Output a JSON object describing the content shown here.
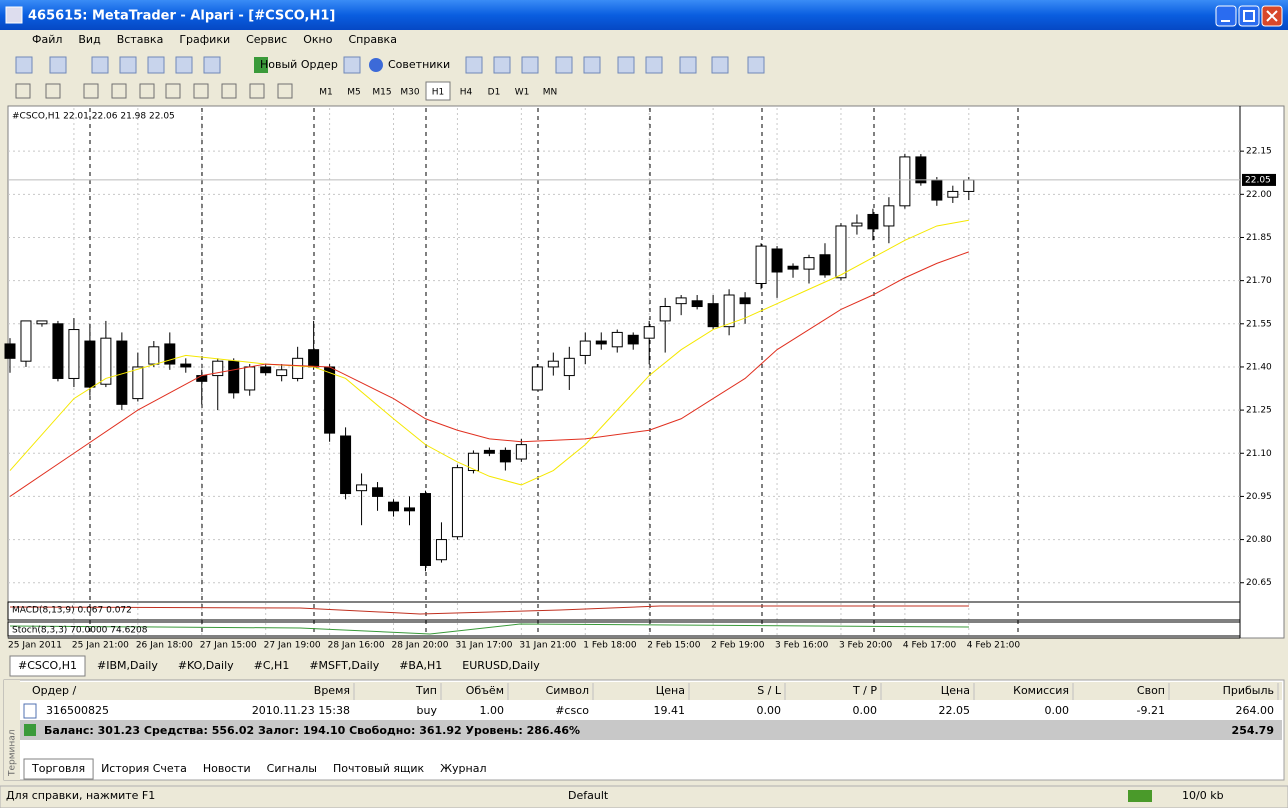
{
  "window": {
    "title": "465615: MetaTrader - Alpari - [#CSCO,H1]"
  },
  "menu": [
    "Файл",
    "Вид",
    "Вставка",
    "Графики",
    "Сервис",
    "Окно",
    "Справка"
  ],
  "toolbar": {
    "new_order": "Новый Ордер",
    "experts": "Советники",
    "timeframes": [
      "M1",
      "M5",
      "M15",
      "M30",
      "H1",
      "H4",
      "D1",
      "W1",
      "MN"
    ]
  },
  "chart_data": {
    "type": "candlestick",
    "header": "#CSCO,H1  22.01 22.06 21.98 22.05",
    "open": [
      21.48,
      21.42,
      21.55,
      21.55,
      21.36,
      21.49,
      21.34,
      21.49,
      21.29,
      21.41,
      21.48,
      21.41,
      21.37,
      21.37,
      21.42,
      21.32,
      21.4,
      21.37,
      21.36,
      21.46,
      21.4,
      21.16,
      20.97,
      20.98,
      20.93,
      20.91,
      20.96,
      20.73,
      20.81,
      21.04,
      21.11,
      21.11,
      21.08,
      21.32,
      21.4,
      21.37,
      21.44,
      21.49,
      21.47,
      21.51,
      21.5,
      21.56,
      21.62,
      21.63,
      21.62,
      21.54,
      21.64,
      21.69,
      21.81,
      21.75,
      21.74,
      21.79,
      21.71,
      21.89,
      21.93,
      21.89,
      21.96,
      22.13,
      22.05,
      21.99,
      22.01
    ],
    "high": [
      21.5,
      21.56,
      21.56,
      21.56,
      21.57,
      21.55,
      21.56,
      21.52,
      21.45,
      21.49,
      21.52,
      21.43,
      21.39,
      21.43,
      21.43,
      21.41,
      21.41,
      21.41,
      21.47,
      21.56,
      21.41,
      21.19,
      21.03,
      21.0,
      20.94,
      20.95,
      20.97,
      20.86,
      21.06,
      21.11,
      21.12,
      21.12,
      21.15,
      21.41,
      21.45,
      21.47,
      21.52,
      21.52,
      21.53,
      21.52,
      21.56,
      21.64,
      21.65,
      21.65,
      21.65,
      21.67,
      21.66,
      21.83,
      21.82,
      21.76,
      21.79,
      21.83,
      21.9,
      21.93,
      21.95,
      21.99,
      22.14,
      22.14,
      22.06,
      22.03,
      22.06
    ],
    "low": [
      21.38,
      21.4,
      21.54,
      21.35,
      21.33,
      21.3,
      21.33,
      21.25,
      21.28,
      21.4,
      21.39,
      21.38,
      21.27,
      21.25,
      21.29,
      21.3,
      21.37,
      21.35,
      21.35,
      21.39,
      21.14,
      20.94,
      20.85,
      20.9,
      20.88,
      20.85,
      20.69,
      20.72,
      20.8,
      21.03,
      21.09,
      21.04,
      21.07,
      21.32,
      21.37,
      21.32,
      21.41,
      21.46,
      21.45,
      21.46,
      21.41,
      21.45,
      21.58,
      21.6,
      21.53,
      21.51,
      21.55,
      21.67,
      21.64,
      21.71,
      21.69,
      21.71,
      21.7,
      21.86,
      21.84,
      21.83,
      21.95,
      22.03,
      21.96,
      21.97,
      21.98
    ],
    "close": [
      21.43,
      21.56,
      21.56,
      21.36,
      21.53,
      21.33,
      21.5,
      21.27,
      21.4,
      21.47,
      21.41,
      21.4,
      21.35,
      21.42,
      21.31,
      21.4,
      21.38,
      21.39,
      21.43,
      21.4,
      21.17,
      20.96,
      20.99,
      20.95,
      20.9,
      20.9,
      20.71,
      20.8,
      21.05,
      21.1,
      21.1,
      21.07,
      21.13,
      21.4,
      21.42,
      21.43,
      21.49,
      21.48,
      21.52,
      21.48,
      21.54,
      21.61,
      21.64,
      21.61,
      21.54,
      21.65,
      21.62,
      21.82,
      21.73,
      21.74,
      21.78,
      21.72,
      21.89,
      21.9,
      21.88,
      21.96,
      22.13,
      22.04,
      21.98,
      22.01,
      22.05
    ],
    "series": [
      {
        "color": "#f5e800",
        "x": [
          0,
          4,
          6,
          11,
          16,
          19,
          21,
          24,
          26,
          28,
          30,
          32,
          34,
          36,
          38,
          40,
          42,
          44,
          46,
          48,
          50,
          52,
          54,
          56,
          58,
          60
        ],
        "values": [
          21.04,
          21.29,
          21.36,
          21.44,
          21.41,
          21.4,
          21.36,
          21.22,
          21.13,
          21.07,
          21.02,
          20.99,
          21.04,
          21.13,
          21.25,
          21.37,
          21.46,
          21.53,
          21.57,
          21.62,
          21.67,
          21.72,
          21.78,
          21.84,
          21.89,
          21.91
        ]
      },
      {
        "color": "#e03020",
        "x": [
          0,
          4,
          8,
          12,
          16,
          20,
          24,
          26,
          28,
          30,
          32,
          36,
          40,
          42,
          44,
          46,
          48,
          50,
          52,
          54,
          56,
          58,
          60
        ],
        "values": [
          20.95,
          21.1,
          21.25,
          21.37,
          21.41,
          21.4,
          21.29,
          21.22,
          21.18,
          21.15,
          21.14,
          21.15,
          21.18,
          21.22,
          21.29,
          21.36,
          21.46,
          21.53,
          21.6,
          21.65,
          21.71,
          21.76,
          21.8
        ]
      }
    ],
    "current_price": 22.05,
    "ylim": [
      20.59,
      22.3
    ],
    "yticks": [
      22.15,
      {
        "value": 22,
        "label": "22.00"
      },
      21.85,
      {
        "value": 21.7,
        "label": "21.70"
      },
      21.55,
      {
        "value": 21.4,
        "label": "21.40"
      },
      21.25,
      {
        "value": 21.1,
        "label": "21.10"
      },
      20.95,
      {
        "value": 20.8,
        "label": "20.80"
      },
      20.65
    ],
    "xtick_labels": [
      "25 Jan 2011",
      "25 Jan 21:00",
      "26 Jan 18:00",
      "27 Jan 15:00",
      "27 Jan 19:00",
      "28 Jan 16:00",
      "28 Jan 20:00",
      "31 Jan 17:00",
      "31 Jan 21:00",
      "1 Feb 18:00",
      "2 Feb 15:00",
      "2 Feb 19:00",
      "3 Feb 16:00",
      "3 Feb 20:00",
      "4 Feb 17:00",
      "4 Feb 21:00"
    ],
    "grid": true,
    "macd_label": "MACD(8,13,9) 0.067 0.072",
    "stoch_label": "Stoch(8,3,3) 70.0000 74.6208"
  },
  "chart_tabs": [
    "#CSCO,H1",
    "#IBM,Daily",
    "#KO,Daily",
    "#C,H1",
    "#MSFT,Daily",
    "#BA,H1",
    "EURUSD,Daily"
  ],
  "terminal": {
    "side_label": "Терминал",
    "columns": [
      "Ордер  /",
      "Время",
      "Тип",
      "Объём",
      "Символ",
      "Цена",
      "S / L",
      "T / P",
      "Цена",
      "Комиссия",
      "Своп",
      "Прибыль"
    ],
    "rows": [
      [
        "316500825",
        "2010.11.23 15:38",
        "buy",
        "1.00",
        "#csco",
        "19.41",
        "0.00",
        "0.00",
        "22.05",
        "0.00",
        "-9.21",
        "264.00"
      ]
    ],
    "summary": "Баланс: 301.23  Средства: 556.02  Залог: 194.10  Свободно: 361.92  Уровень: 286.46%",
    "summary_value": "254.79",
    "tabs": [
      "Торговля",
      "История Счета",
      "Новости",
      "Сигналы",
      "Почтовый ящик",
      "Журнал"
    ]
  },
  "status": {
    "help": "Для справки, нажмите F1",
    "profile": "Default",
    "traffic": "10/0 kb"
  }
}
